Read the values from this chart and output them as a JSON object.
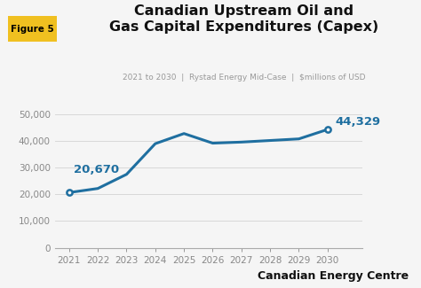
{
  "years": [
    2021,
    2022,
    2023,
    2024,
    2025,
    2026,
    2027,
    2028,
    2029,
    2030
  ],
  "values": [
    20670,
    22200,
    27500,
    39000,
    42800,
    39200,
    39600,
    40200,
    40800,
    44329
  ],
  "line_color": "#1f6fa0",
  "marker_color": "#1f6fa0",
  "title_line1": "Canadian Upstream Oil and",
  "title_line2": "Gas Capital Expenditures (Capex)",
  "subtitle": "2021 to 2030  |  Rystad Energy Mid-Case  |  $millions of USD",
  "label_2021": "20,670",
  "label_2030": "44,329",
  "label_color": "#1f6fa0",
  "figure_label": "Figure 5",
  "figure_label_bg": "#f0c020",
  "figure_label_color": "#000000",
  "branding": "Canadian Energy Centre",
  "branding_color": "#111111",
  "ylim": [
    0,
    54000
  ],
  "yticks": [
    0,
    10000,
    20000,
    30000,
    40000,
    50000
  ],
  "ytick_labels": [
    "0",
    "10,000",
    "20,000",
    "30,000",
    "40,000",
    "50,000"
  ],
  "bg_color": "#f5f5f5",
  "plot_bg": "#f5f5f5",
  "grid_color": "#d8d8d8",
  "title_fontsize": 11.5,
  "subtitle_fontsize": 6.5,
  "tick_fontsize": 7.5,
  "annotation_fontsize": 9.5,
  "branding_fontsize": 9
}
